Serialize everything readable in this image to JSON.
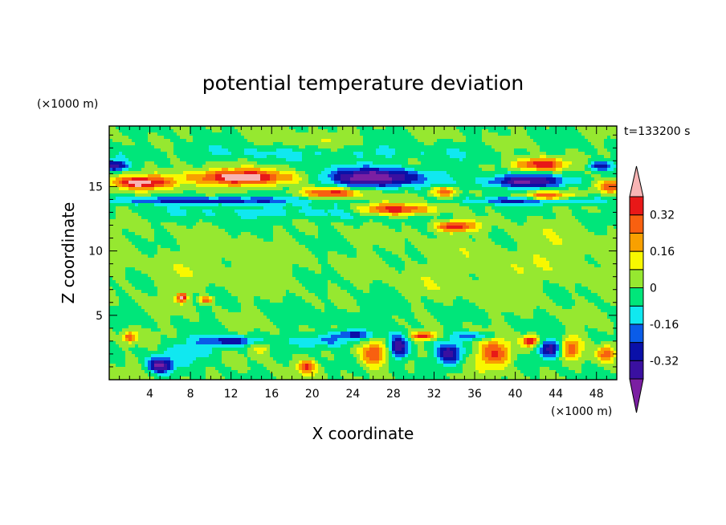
{
  "chart_data": {
    "type": "heatmap",
    "title": "potential temperature deviation",
    "xlabel": "X coordinate",
    "ylabel": "Z coordinate",
    "x_unit": "(×1000 m)",
    "y_unit": "(×1000 m)",
    "time_label": "t=133200 s",
    "xlim": [
      0,
      50
    ],
    "ylim": [
      0,
      19.7
    ],
    "x_ticks": [
      4,
      8,
      12,
      16,
      20,
      24,
      28,
      32,
      36,
      40,
      44,
      48
    ],
    "y_ticks": [
      5,
      10,
      15
    ],
    "colorbar": {
      "levels": [
        -0.4,
        -0.32,
        -0.24,
        -0.16,
        -0.08,
        0,
        0.08,
        0.16,
        0.24,
        0.32,
        0.4
      ],
      "colors": [
        "#7b1fa2",
        "#3a10a0",
        "#0a10a8",
        "#0a5ce8",
        "#10e8f0",
        "#00e67a",
        "#96e830",
        "#f8f800",
        "#f8a000",
        "#f86010",
        "#e81818",
        "#f8b4b4"
      ],
      "tick_labels": [
        "0.32",
        "0.16",
        "0",
        "-0.16",
        "-0.32"
      ],
      "tick_values": [
        0.32,
        0.16,
        0,
        -0.16,
        -0.32
      ]
    },
    "features": [
      {
        "x": 3,
        "z": 15.3,
        "amp": 0.42,
        "sx": 3,
        "sz": 0.5
      },
      {
        "x": 13,
        "z": 15.7,
        "amp": 0.45,
        "sx": 5.5,
        "sz": 0.6
      },
      {
        "x": 22,
        "z": 14.5,
        "amp": 0.36,
        "sx": 3,
        "sz": 0.4
      },
      {
        "x": 28,
        "z": 13.2,
        "amp": 0.42,
        "sx": 4,
        "sz": 0.45
      },
      {
        "x": 34,
        "z": 11.9,
        "amp": 0.38,
        "sx": 2,
        "sz": 0.4
      },
      {
        "x": 33,
        "z": 14.6,
        "amp": 0.32,
        "sx": 1.3,
        "sz": 0.4
      },
      {
        "x": 42.5,
        "z": 16.7,
        "amp": 0.42,
        "sx": 2.3,
        "sz": 0.5
      },
      {
        "x": 43,
        "z": 14.2,
        "amp": 0.36,
        "sx": 2.2,
        "sz": 0.4
      },
      {
        "x": 49.5,
        "z": 15,
        "amp": 0.36,
        "sx": 1.5,
        "sz": 0.5
      },
      {
        "x": 26,
        "z": 15.7,
        "amp": -0.46,
        "sx": 5.5,
        "sz": 0.75
      },
      {
        "x": 41,
        "z": 15.4,
        "amp": -0.42,
        "sx": 4,
        "sz": 0.55
      },
      {
        "x": 0.5,
        "z": 16.6,
        "amp": -0.38,
        "sx": 1.2,
        "sz": 0.4
      },
      {
        "x": 48.5,
        "z": 16.6,
        "amp": -0.32,
        "sx": 1.3,
        "sz": 0.4
      },
      {
        "x": 10,
        "z": 13.9,
        "amp": -0.3,
        "sx": 9,
        "sz": 0.3
      },
      {
        "x": 42,
        "z": 13.9,
        "amp": -0.3,
        "sx": 6,
        "sz": 0.3
      },
      {
        "x": 20,
        "z": 13,
        "amp": -0.12,
        "sx": 14,
        "sz": 0.6
      },
      {
        "x": 20,
        "z": 17.6,
        "amp": -0.1,
        "sx": 18,
        "sz": 0.6
      },
      {
        "x": 7.2,
        "z": 6.4,
        "amp": 0.44,
        "sx": 0.5,
        "sz": 0.35
      },
      {
        "x": 9.6,
        "z": 6.2,
        "amp": 0.36,
        "sx": 0.6,
        "sz": 0.25
      },
      {
        "x": 5,
        "z": 1.1,
        "amp": -0.42,
        "sx": 1.2,
        "sz": 0.6
      },
      {
        "x": 12,
        "z": 3,
        "amp": -0.28,
        "sx": 3,
        "sz": 0.4
      },
      {
        "x": 8,
        "z": 2.2,
        "amp": -0.14,
        "sx": 3,
        "sz": 0.8
      },
      {
        "x": 2,
        "z": 3.3,
        "amp": 0.32,
        "sx": 0.6,
        "sz": 0.4
      },
      {
        "x": 15,
        "z": 2.5,
        "amp": 0.16,
        "sx": 1,
        "sz": 0.6
      },
      {
        "x": 19.5,
        "z": 1,
        "amp": 0.3,
        "sx": 0.8,
        "sz": 0.5
      },
      {
        "x": 21,
        "z": 3,
        "amp": -0.2,
        "sx": 3,
        "sz": 0.5
      },
      {
        "x": 26,
        "z": 2,
        "amp": 0.32,
        "sx": 1.3,
        "sz": 1
      },
      {
        "x": 28.5,
        "z": 2.5,
        "amp": -0.42,
        "sx": 1,
        "sz": 0.9
      },
      {
        "x": 31,
        "z": 3.4,
        "amp": 0.42,
        "sx": 1.2,
        "sz": 0.3
      },
      {
        "x": 33.5,
        "z": 2,
        "amp": -0.36,
        "sx": 1.3,
        "sz": 0.8
      },
      {
        "x": 38,
        "z": 2,
        "amp": 0.34,
        "sx": 1.6,
        "sz": 1
      },
      {
        "x": 41.5,
        "z": 3,
        "amp": 0.42,
        "sx": 0.8,
        "sz": 0.4
      },
      {
        "x": 43.5,
        "z": 2.4,
        "amp": -0.4,
        "sx": 1.1,
        "sz": 0.7
      },
      {
        "x": 45.5,
        "z": 2.5,
        "amp": 0.3,
        "sx": 1,
        "sz": 0.8
      },
      {
        "x": 49,
        "z": 2,
        "amp": 0.3,
        "sx": 0.9,
        "sz": 0.7
      },
      {
        "x": 36,
        "z": 3.4,
        "amp": -0.22,
        "sx": 2,
        "sz": 0.3
      },
      {
        "x": 24,
        "z": 3.5,
        "amp": -0.24,
        "sx": 2,
        "sz": 0.3
      },
      {
        "x": 10,
        "z": 9,
        "amp": 0.05,
        "sx": 8,
        "sz": 2
      },
      {
        "x": 35,
        "z": 8,
        "amp": 0.05,
        "sx": 8,
        "sz": 3
      },
      {
        "x": 45,
        "z": 10,
        "amp": 0.06,
        "sx": 4,
        "sz": 2
      },
      {
        "x": 28,
        "z": 5,
        "amp": -0.04,
        "sx": 10,
        "sz": 1.5
      },
      {
        "x": 20,
        "z": 18.5,
        "amp": 0.06,
        "sx": 4,
        "sz": 1
      }
    ]
  }
}
